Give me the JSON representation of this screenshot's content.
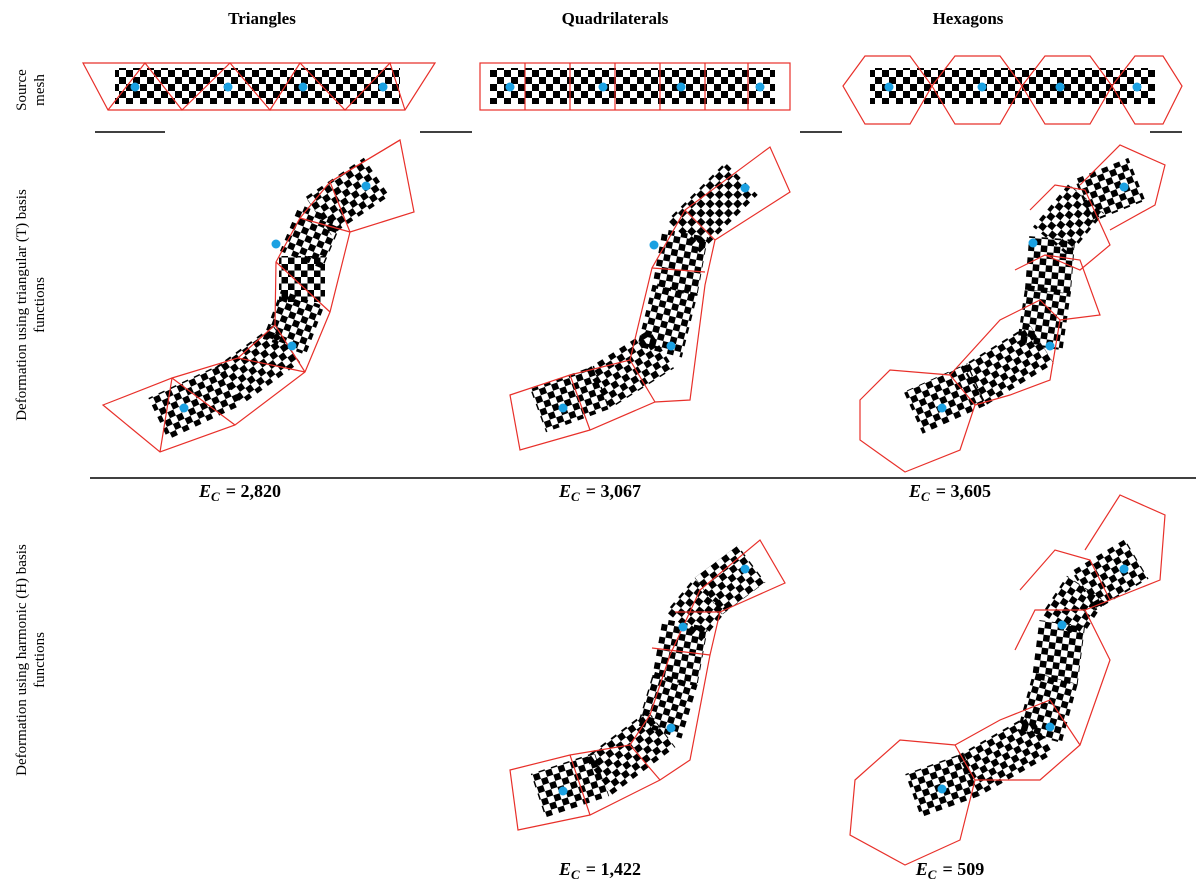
{
  "columns": [
    "Triangles",
    "Quadrilaterals",
    "Hexagons"
  ],
  "rows": [
    {
      "label_lines": [
        "Source",
        "mesh"
      ]
    },
    {
      "label_lines": [
        "Deformation using triangular (T) basis",
        "functions"
      ],
      "energies": [
        {
          "symbol": "E",
          "subscript": "C",
          "text": "= 2,820"
        },
        {
          "symbol": "E",
          "subscript": "C",
          "text": "= 3,067"
        },
        {
          "symbol": "E",
          "subscript": "C",
          "text": "= 3,605"
        }
      ]
    },
    {
      "label_lines": [
        "Deformation using harmonic (H) basis",
        "functions"
      ],
      "energies": [
        null,
        {
          "symbol": "E",
          "subscript": "C",
          "text": "= 1,422"
        },
        {
          "symbol": "E",
          "subscript": "C",
          "text": "= 509"
        }
      ]
    }
  ]
}
